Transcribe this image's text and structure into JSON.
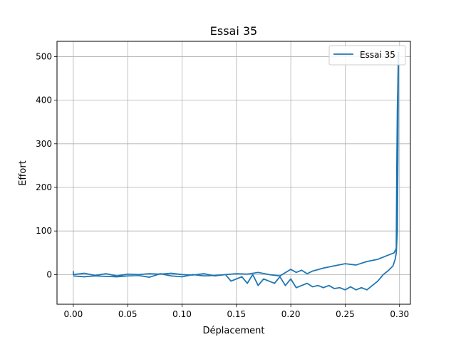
{
  "chart_data": {
    "type": "line",
    "title": "Essai 35",
    "xlabel": "Déplacement",
    "ylabel": "Effort",
    "xlim": [
      -0.015,
      0.31
    ],
    "ylim": [
      -68,
      535
    ],
    "xticks": [
      0.0,
      0.05,
      0.1,
      0.15,
      0.2,
      0.25,
      0.3
    ],
    "xtick_labels": [
      "0.00",
      "0.05",
      "0.10",
      "0.15",
      "0.20",
      "0.25",
      "0.30"
    ],
    "yticks": [
      0,
      100,
      200,
      300,
      400,
      500
    ],
    "ytick_labels": [
      "0",
      "100",
      "200",
      "300",
      "400",
      "500"
    ],
    "grid": true,
    "legend": {
      "position": "top-right"
    },
    "series": [
      {
        "name": "Essai 35",
        "color": "#1f77b4",
        "x": [
          0.0,
          0.0,
          0.01,
          0.02,
          0.03,
          0.04,
          0.05,
          0.06,
          0.07,
          0.08,
          0.09,
          0.1,
          0.11,
          0.12,
          0.13,
          0.14,
          0.15,
          0.16,
          0.17,
          0.18,
          0.19,
          0.2,
          0.205,
          0.21,
          0.215,
          0.22,
          0.23,
          0.24,
          0.25,
          0.26,
          0.27,
          0.28,
          0.29,
          0.295,
          0.296,
          0.297,
          0.2975,
          0.298,
          0.2985,
          0.299,
          0.2985,
          0.298,
          0.297,
          0.296,
          0.294,
          0.29,
          0.285,
          0.28,
          0.275,
          0.27,
          0.265,
          0.26,
          0.255,
          0.25,
          0.245,
          0.24,
          0.235,
          0.23,
          0.225,
          0.22,
          0.215,
          0.21,
          0.205,
          0.2,
          0.195,
          0.19,
          0.185,
          0.18,
          0.175,
          0.17,
          0.165,
          0.16,
          0.155,
          0.15,
          0.145,
          0.14,
          0.13,
          0.12,
          0.11,
          0.1,
          0.09,
          0.08,
          0.07,
          0.06,
          0.05,
          0.04,
          0.03,
          0.02,
          0.01,
          0.0
        ],
        "y": [
          8,
          0,
          3,
          -2,
          2,
          -3,
          1,
          0,
          2,
          1,
          3,
          0,
          -1,
          2,
          -3,
          0,
          2,
          1,
          5,
          0,
          -3,
          12,
          5,
          10,
          2,
          8,
          15,
          20,
          25,
          22,
          30,
          35,
          45,
          50,
          55,
          60,
          250,
          380,
          440,
          510,
          260,
          100,
          50,
          35,
          20,
          10,
          0,
          -15,
          -25,
          -35,
          -30,
          -35,
          -28,
          -35,
          -30,
          -32,
          -25,
          -30,
          -25,
          -28,
          -20,
          -25,
          -30,
          -10,
          -25,
          -5,
          -20,
          -15,
          -10,
          -25,
          0,
          -20,
          -5,
          -10,
          -15,
          0,
          -2,
          -3,
          0,
          -5,
          -3,
          2,
          -6,
          -2,
          -3,
          -5,
          -4,
          -3,
          -5,
          -3
        ]
      }
    ]
  }
}
